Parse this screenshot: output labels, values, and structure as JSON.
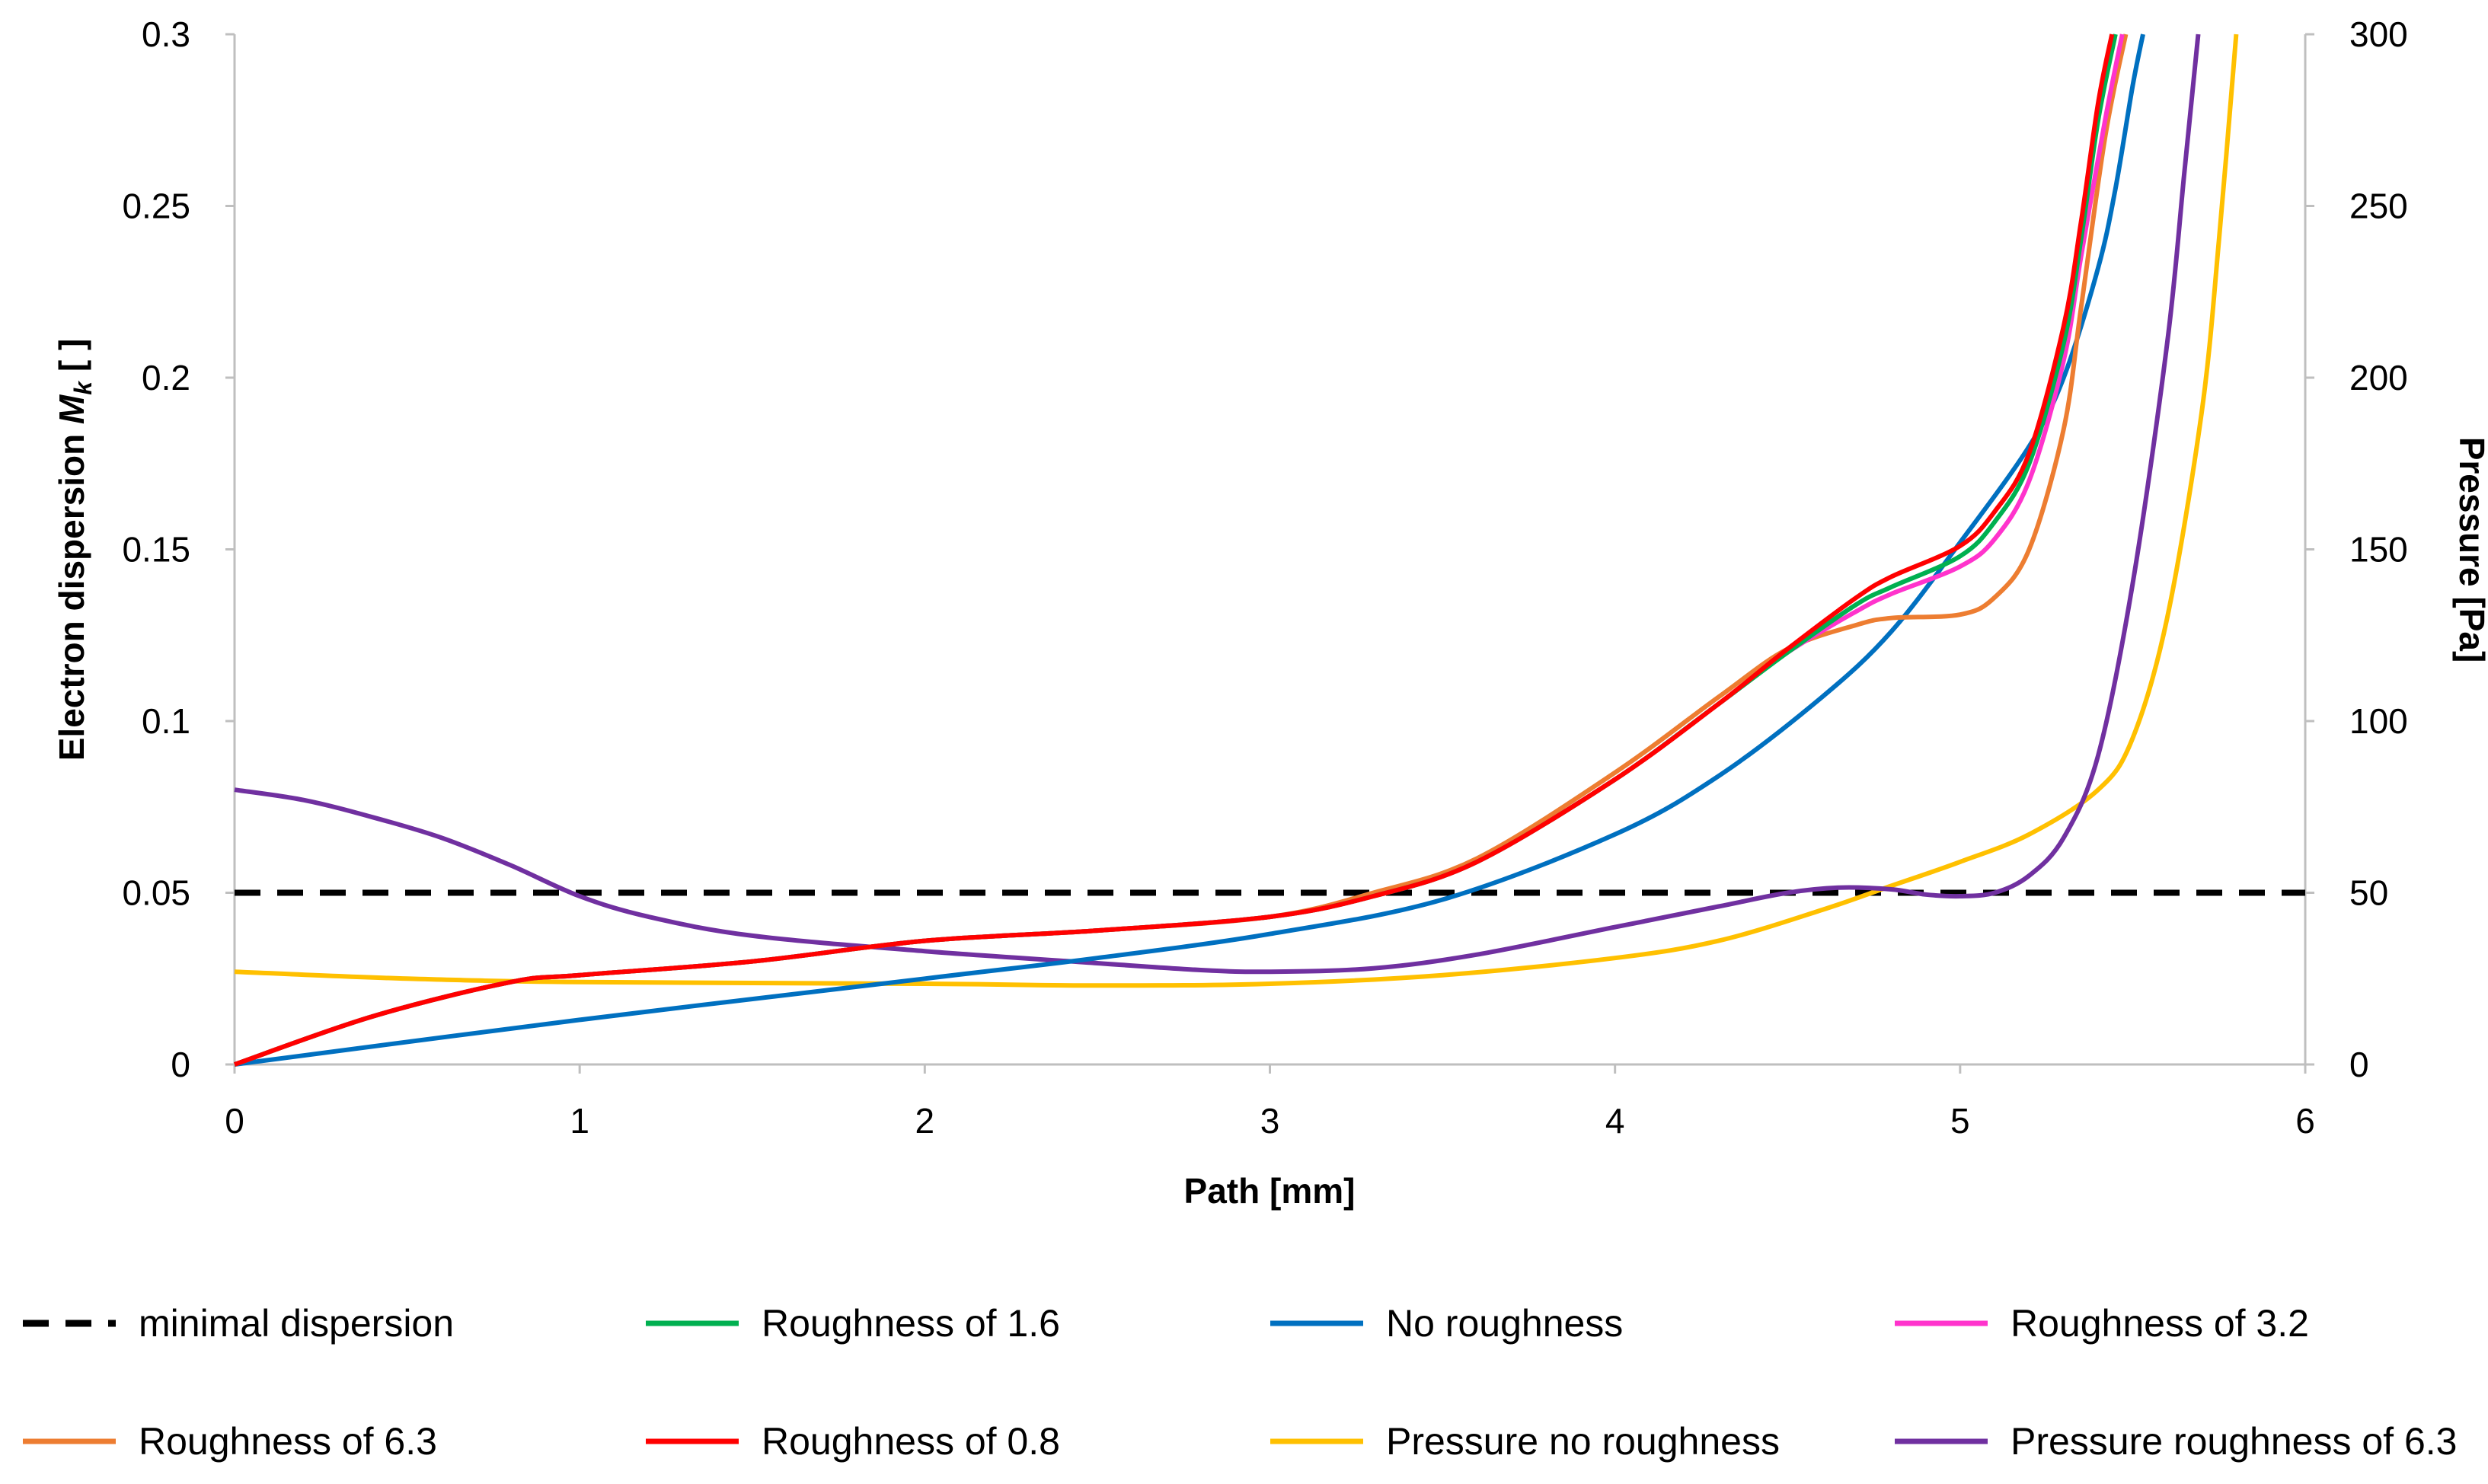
{
  "chart_data": {
    "type": "line",
    "xlabel": "Path [mm]",
    "ylabel_left_main": "Electron dispersion ",
    "ylabel_left_symbol": "M",
    "ylabel_left_sub": "k",
    "ylabel_left_unit": " [ ]",
    "ylabel_right": "Pressure [Pa]",
    "xlim": [
      0,
      6
    ],
    "ylim_left": [
      0,
      0.3
    ],
    "ylim_right": [
      0,
      300
    ],
    "x_ticks": [
      "0",
      "1",
      "2",
      "3",
      "4",
      "5",
      "6"
    ],
    "y_left_ticks": [
      "0",
      "0.05",
      "0.1",
      "0.15",
      "0.2",
      "0.25",
      "0.3"
    ],
    "y_right_ticks": [
      "0",
      "50",
      "100",
      "150",
      "200",
      "250",
      "300"
    ],
    "grid": false,
    "legend_position": "bottom",
    "series": [
      {
        "name": "minimal dispersion",
        "axis": "left",
        "color": "#000000",
        "dash": true,
        "points": [
          [
            0,
            0.05
          ],
          [
            6,
            0.05
          ]
        ]
      },
      {
        "name": "Roughness of 1.6",
        "axis": "left",
        "color": "#00b050",
        "dash": false,
        "points": [
          [
            0,
            0
          ],
          [
            0.4,
            0.014
          ],
          [
            0.8,
            0.024
          ],
          [
            1,
            0.026
          ],
          [
            1.5,
            0.03
          ],
          [
            2,
            0.036
          ],
          [
            2.5,
            0.039
          ],
          [
            3,
            0.043
          ],
          [
            3.3,
            0.049
          ],
          [
            3.6,
            0.059
          ],
          [
            4,
            0.083
          ],
          [
            4.3,
            0.105
          ],
          [
            4.5,
            0.12
          ],
          [
            4.7,
            0.134
          ],
          [
            4.8,
            0.139
          ],
          [
            5,
            0.148
          ],
          [
            5.1,
            0.158
          ],
          [
            5.2,
            0.175
          ],
          [
            5.3,
            0.21
          ],
          [
            5.35,
            0.24
          ],
          [
            5.4,
            0.275
          ],
          [
            5.45,
            0.3
          ]
        ]
      },
      {
        "name": "No roughness",
        "axis": "left",
        "color": "#0070c0",
        "dash": false,
        "points": [
          [
            0,
            0
          ],
          [
            1,
            0.013
          ],
          [
            2,
            0.025
          ],
          [
            2.5,
            0.031
          ],
          [
            3,
            0.038
          ],
          [
            3.5,
            0.048
          ],
          [
            4,
            0.067
          ],
          [
            4.3,
            0.084
          ],
          [
            4.6,
            0.107
          ],
          [
            4.8,
            0.126
          ],
          [
            5,
            0.152
          ],
          [
            5.2,
            0.18
          ],
          [
            5.3,
            0.2
          ],
          [
            5.4,
            0.232
          ],
          [
            5.45,
            0.255
          ],
          [
            5.5,
            0.285
          ],
          [
            5.53,
            0.3
          ]
        ]
      },
      {
        "name": "Roughness of 3.2",
        "axis": "left",
        "color": "#ff33cc",
        "dash": false,
        "points": [
          [
            0,
            0
          ],
          [
            0.4,
            0.014
          ],
          [
            0.8,
            0.024
          ],
          [
            1,
            0.026
          ],
          [
            1.5,
            0.03
          ],
          [
            2,
            0.036
          ],
          [
            2.5,
            0.039
          ],
          [
            3,
            0.043
          ],
          [
            3.3,
            0.049
          ],
          [
            3.6,
            0.059
          ],
          [
            4,
            0.083
          ],
          [
            4.3,
            0.105
          ],
          [
            4.5,
            0.12
          ],
          [
            4.7,
            0.132
          ],
          [
            4.8,
            0.137
          ],
          [
            5,
            0.145
          ],
          [
            5.1,
            0.153
          ],
          [
            5.2,
            0.17
          ],
          [
            5.3,
            0.205
          ],
          [
            5.35,
            0.235
          ],
          [
            5.42,
            0.275
          ],
          [
            5.47,
            0.3
          ]
        ]
      },
      {
        "name": "Roughness of 6.3",
        "axis": "left",
        "color": "#ed7d31",
        "dash": false,
        "points": [
          [
            0,
            0
          ],
          [
            0.4,
            0.014
          ],
          [
            0.8,
            0.024
          ],
          [
            1,
            0.026
          ],
          [
            1.5,
            0.03
          ],
          [
            2,
            0.036
          ],
          [
            2.5,
            0.039
          ],
          [
            3,
            0.043
          ],
          [
            3.3,
            0.05
          ],
          [
            3.6,
            0.06
          ],
          [
            4,
            0.085
          ],
          [
            4.3,
            0.107
          ],
          [
            4.5,
            0.121
          ],
          [
            4.7,
            0.128
          ],
          [
            4.8,
            0.13
          ],
          [
            5,
            0.131
          ],
          [
            5.1,
            0.136
          ],
          [
            5.2,
            0.15
          ],
          [
            5.3,
            0.185
          ],
          [
            5.35,
            0.22
          ],
          [
            5.42,
            0.27
          ],
          [
            5.48,
            0.3
          ]
        ]
      },
      {
        "name": "Roughness of 0.8",
        "axis": "left",
        "color": "#ff0000",
        "dash": false,
        "points": [
          [
            0,
            0
          ],
          [
            0.4,
            0.014
          ],
          [
            0.8,
            0.024
          ],
          [
            1,
            0.026
          ],
          [
            1.5,
            0.03
          ],
          [
            2,
            0.036
          ],
          [
            2.5,
            0.039
          ],
          [
            3,
            0.043
          ],
          [
            3.3,
            0.049
          ],
          [
            3.6,
            0.059
          ],
          [
            4,
            0.083
          ],
          [
            4.3,
            0.105
          ],
          [
            4.5,
            0.121
          ],
          [
            4.7,
            0.136
          ],
          [
            4.8,
            0.142
          ],
          [
            5,
            0.151
          ],
          [
            5.1,
            0.161
          ],
          [
            5.2,
            0.178
          ],
          [
            5.3,
            0.215
          ],
          [
            5.35,
            0.245
          ],
          [
            5.4,
            0.28
          ],
          [
            5.44,
            0.3
          ]
        ]
      },
      {
        "name": "Pressure no roughness",
        "axis": "right",
        "color": "#ffc000",
        "dash": false,
        "points": [
          [
            0,
            27
          ],
          [
            0.5,
            25
          ],
          [
            1,
            24
          ],
          [
            2,
            23.5
          ],
          [
            2.5,
            23
          ],
          [
            3,
            23.5
          ],
          [
            3.5,
            26
          ],
          [
            4,
            31
          ],
          [
            4.3,
            36
          ],
          [
            4.6,
            45
          ],
          [
            4.8,
            52
          ],
          [
            5,
            59
          ],
          [
            5.2,
            67
          ],
          [
            5.4,
            80
          ],
          [
            5.5,
            95
          ],
          [
            5.6,
            130
          ],
          [
            5.7,
            190
          ],
          [
            5.75,
            240
          ],
          [
            5.8,
            300
          ]
        ]
      },
      {
        "name": "Pressure roughness of 6.3",
        "axis": "right",
        "color": "#7030a0",
        "dash": false,
        "points": [
          [
            0,
            80
          ],
          [
            0.2,
            77
          ],
          [
            0.4,
            72
          ],
          [
            0.6,
            66
          ],
          [
            0.8,
            58
          ],
          [
            1,
            49
          ],
          [
            1.2,
            43
          ],
          [
            1.5,
            37.5
          ],
          [
            2,
            33
          ],
          [
            2.5,
            29.5
          ],
          [
            2.8,
            27.5
          ],
          [
            3,
            27
          ],
          [
            3.3,
            28
          ],
          [
            3.6,
            32
          ],
          [
            4,
            40
          ],
          [
            4.3,
            46
          ],
          [
            4.5,
            50
          ],
          [
            4.65,
            51.5
          ],
          [
            4.8,
            51
          ],
          [
            4.9,
            49.5
          ],
          [
            5,
            49
          ],
          [
            5.1,
            50
          ],
          [
            5.2,
            55
          ],
          [
            5.3,
            66
          ],
          [
            5.4,
            90
          ],
          [
            5.5,
            140
          ],
          [
            5.6,
            210
          ],
          [
            5.65,
            260
          ],
          [
            5.69,
            300
          ]
        ]
      }
    ]
  }
}
